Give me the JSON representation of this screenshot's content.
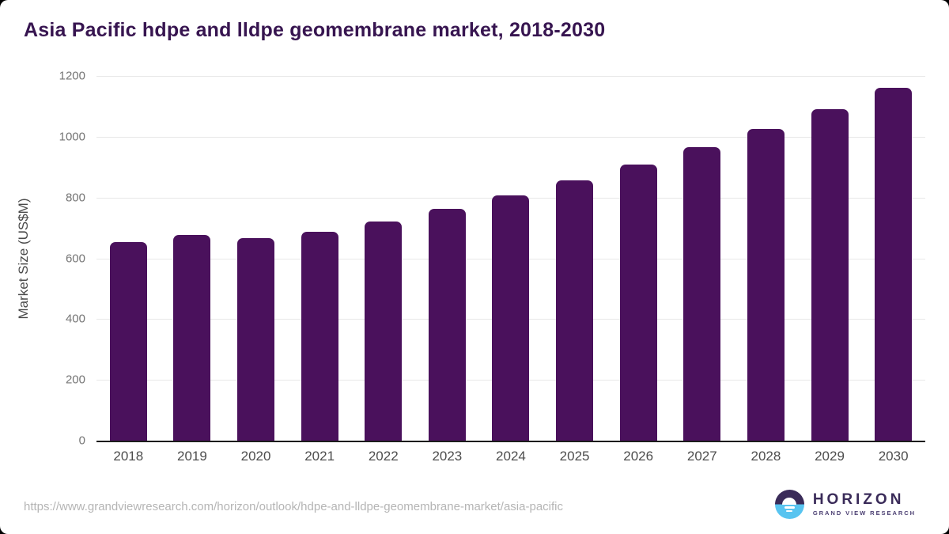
{
  "chart_data": {
    "type": "bar",
    "title": "Asia Pacific hdpe and lldpe geomembrane market, 2018-2030",
    "categories": [
      "2018",
      "2019",
      "2020",
      "2021",
      "2022",
      "2023",
      "2024",
      "2025",
      "2026",
      "2027",
      "2028",
      "2029",
      "2030"
    ],
    "values": [
      653,
      676,
      667,
      687,
      722,
      762,
      807,
      856,
      909,
      965,
      1025,
      1090,
      1160
    ],
    "xlabel": "",
    "ylabel": "Market Size (US$M)",
    "ylim": [
      0,
      1200
    ],
    "yticks": [
      0,
      200,
      400,
      600,
      800,
      1000,
      1200
    ],
    "grid": true,
    "legend": false,
    "bar_color": "#4a115c"
  },
  "footer": {
    "source_url": "https://www.grandviewresearch.com/horizon/outlook/hdpe-and-lldpe-geomembrane-market/asia-pacific",
    "logo": {
      "brand": "HORIZON",
      "tagline": "GRAND VIEW RESEARCH"
    }
  },
  "colors": {
    "title": "#371550",
    "bar": "#4a115c",
    "y_tick_label": "#757575",
    "x_tick_label": "#4d4d4d",
    "axis_label": "#4a4a4a",
    "gridline": "#e8e8e8",
    "baseline": "#1c1c1c",
    "source_url": "#b5b5b5",
    "logo_purple": "#3a2b59",
    "logo_blue": "#58c4f0"
  }
}
